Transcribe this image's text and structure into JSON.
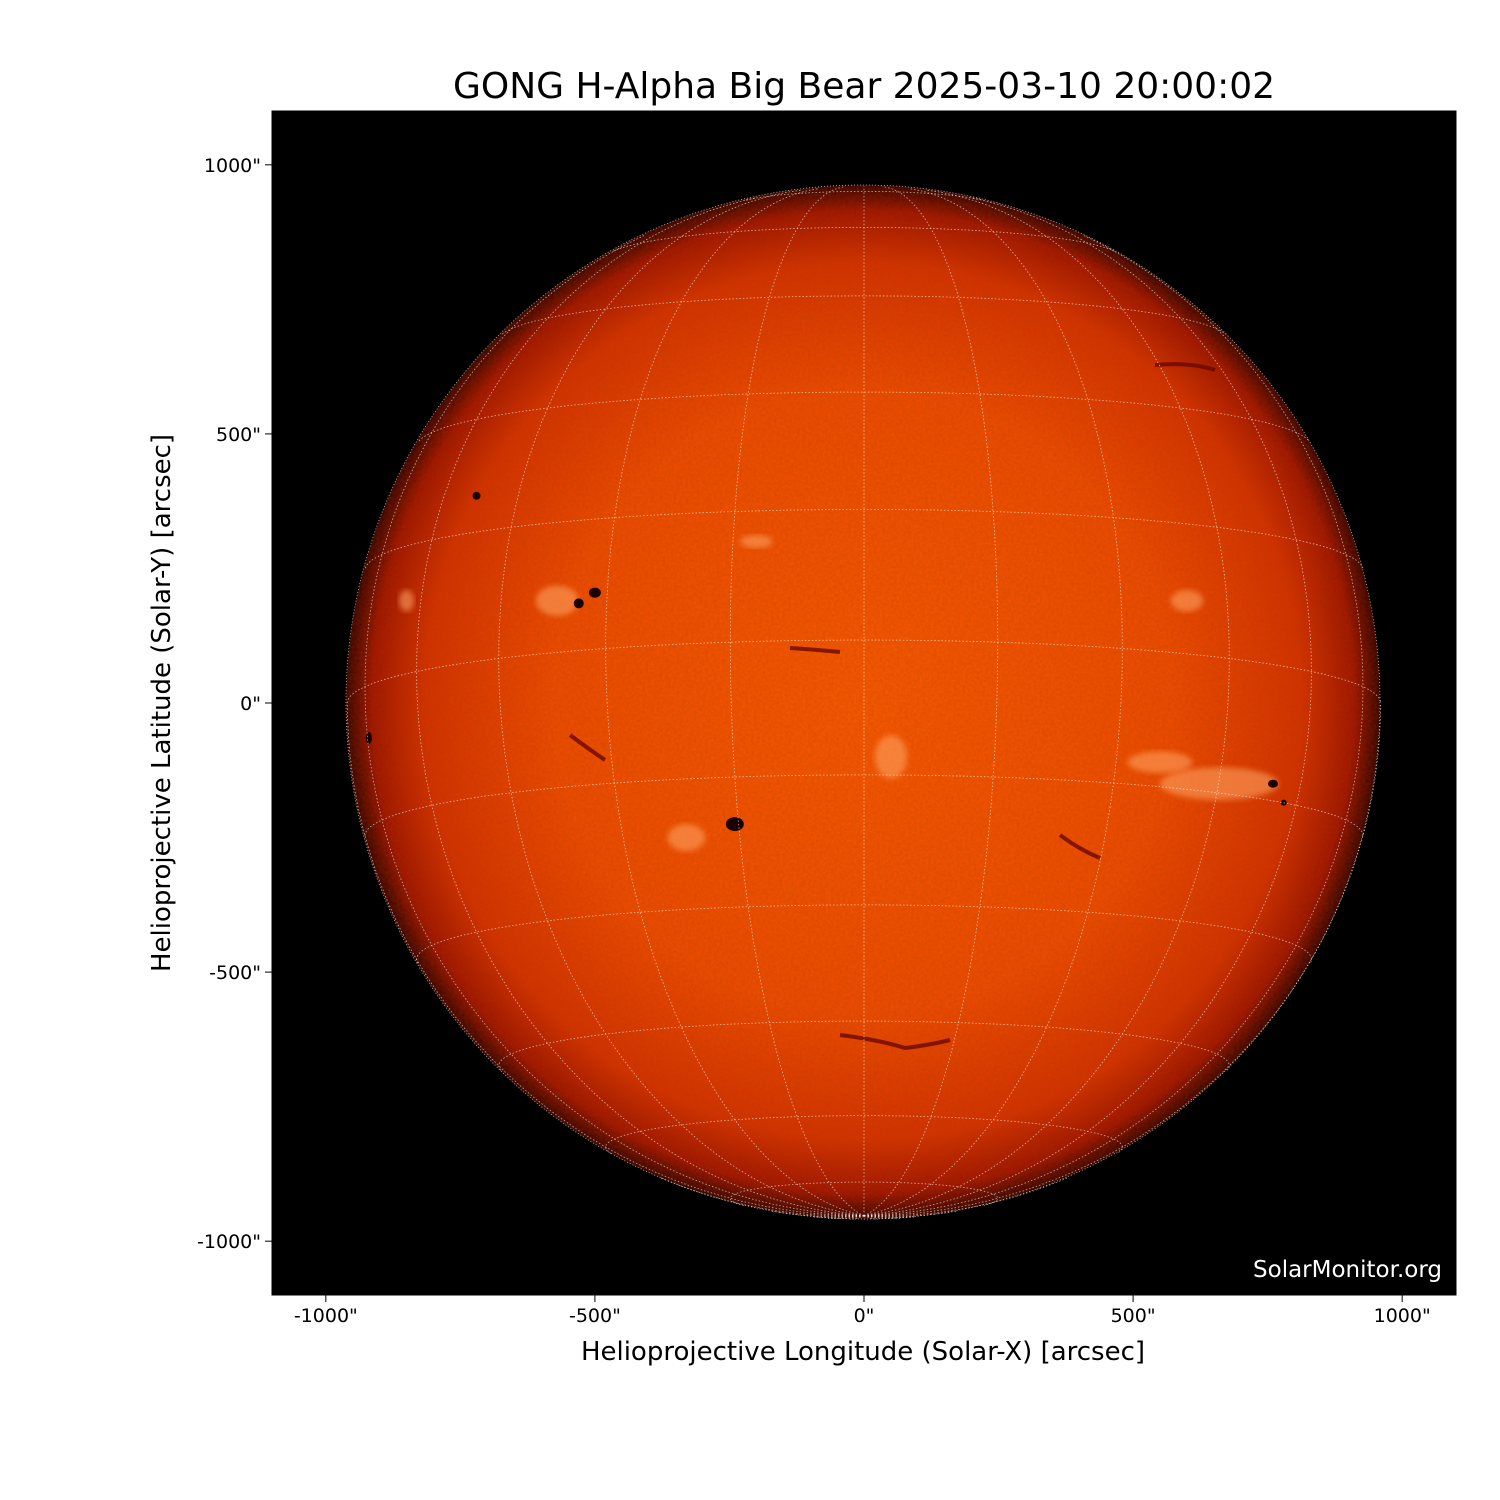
{
  "title": "GONG H-Alpha Big Bear 2025-03-10 20:00:02",
  "xaxis": {
    "label": "Helioprojective Longitude (Solar-X) [arcsec]",
    "ticks": [
      -1000,
      -500,
      0,
      500,
      1000
    ],
    "tick_labels": [
      "-1000\"",
      "-500\"",
      "0\"",
      "500\"",
      "1000\""
    ],
    "range": [
      -1100,
      1100
    ]
  },
  "yaxis": {
    "label": "Helioprojective Latitude (Solar-Y) [arcsec]",
    "ticks": [
      1000,
      500,
      0,
      -500,
      -1000
    ],
    "tick_labels": [
      "1000\"",
      "500\"",
      "0\"",
      "-500\"",
      "-1000\""
    ],
    "range": [
      -1100,
      1100
    ]
  },
  "watermark": "SolarMonitor.org",
  "image": {
    "colormap": "red-orange H-alpha",
    "solar_radius_arcsec": 960,
    "grid_spacing_deg": 15,
    "background": "#000000",
    "disk_colors": [
      "#ff5a00",
      "#e83a00",
      "#a01000",
      "#300000"
    ]
  }
}
